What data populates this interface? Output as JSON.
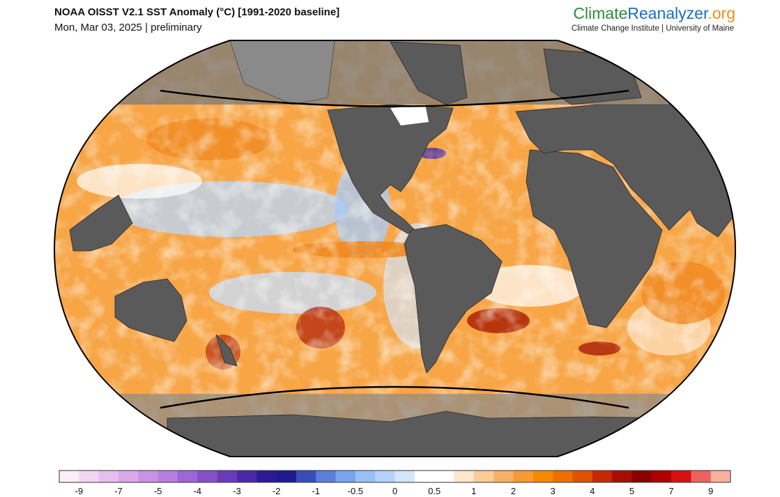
{
  "header": {
    "title": "NOAA OISST V2.1 SST Anomaly (°C) [1991-2020 baseline]",
    "subtitle": "Mon, Mar 03, 2025 | preliminary"
  },
  "brand": {
    "parts": [
      "Climate",
      "Reanalyzer",
      ".org"
    ],
    "colors": [
      "#2e8b3a",
      "#1a6fc0",
      "#f0901a"
    ],
    "affiliation": "Climate Change Institute | University of Maine"
  },
  "colorbar": {
    "colors": [
      "#fbeef5",
      "#f2d6f0",
      "#e6bfee",
      "#d9a9ea",
      "#c893e6",
      "#b57ee0",
      "#9d66d6",
      "#8550c8",
      "#6a3bb8",
      "#4b28a8",
      "#2a1a96",
      "#1f1a8c",
      "#3a4cba",
      "#5b7ed8",
      "#78a3ec",
      "#98c0f5",
      "#b5d3f8",
      "#d3e6fb",
      "#ffffff",
      "#ffffff",
      "#fde6cc",
      "#fbcc99",
      "#f9b066",
      "#f79a33",
      "#f58a00",
      "#f06e00",
      "#e05000",
      "#c82800",
      "#a80f00",
      "#8c0000",
      "#b00000",
      "#d81010",
      "#f06060",
      "#f8b0a0"
    ],
    "ticks": [
      -9,
      -7,
      -5,
      -4,
      -3,
      -2,
      -1,
      -0.5,
      0,
      0.5,
      1,
      2,
      3,
      4,
      5,
      7,
      9
    ]
  }
}
